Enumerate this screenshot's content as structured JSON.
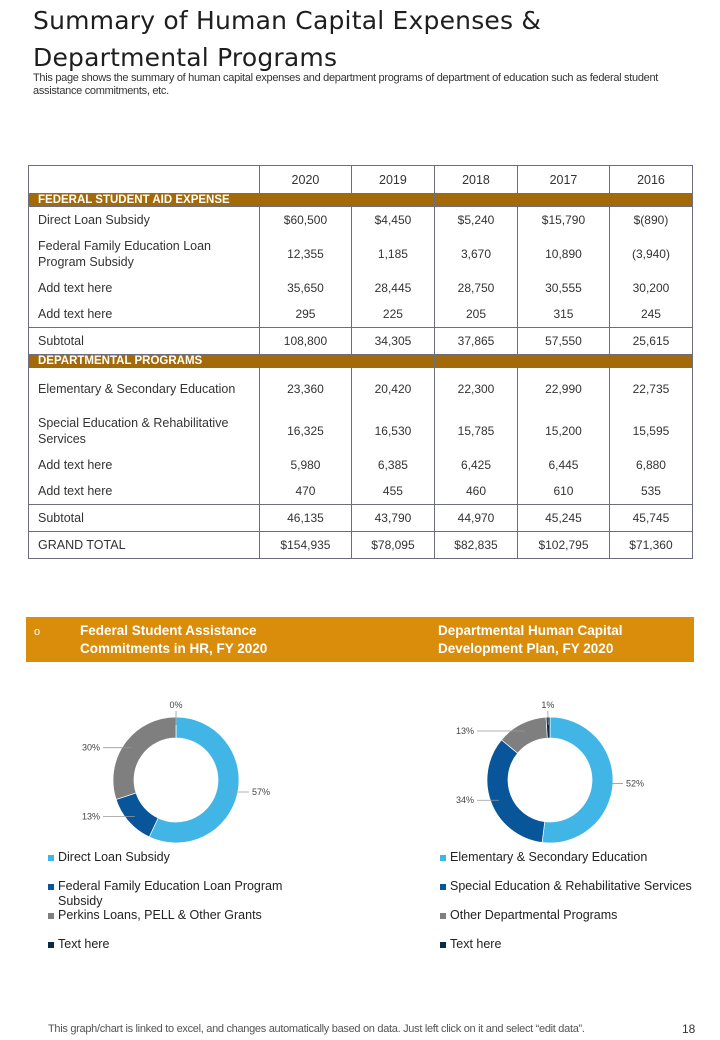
{
  "header": {
    "title_line1": "Summary of Human Capital Expenses &",
    "title_line2": "Departmental Programs",
    "subtitle": "This page shows the summary of human capital expenses and department programs of department of education such as federal student assistance commitments, etc."
  },
  "table": {
    "years": [
      "2020",
      "2019",
      "2018",
      "2017",
      "2016"
    ],
    "rows": [
      {
        "type": "sec",
        "label": "FEDERAL  STUDENT AID EXPENSE",
        "values": []
      },
      {
        "type": "r1",
        "label": "Direct Loan Subsidy",
        "values": [
          "$60,500",
          "$4,450",
          "$5,240",
          "$15,790",
          "$(890)"
        ]
      },
      {
        "type": "r2",
        "label": "Federal Family Education Loan Program Subsidy",
        "values": [
          "12,355",
          "1,185",
          "3,670",
          "10,890",
          "(3,940)"
        ]
      },
      {
        "type": "r1",
        "label": "Add text here",
        "values": [
          "35,650",
          "28,445",
          "28,750",
          "30,555",
          "30,200"
        ]
      },
      {
        "type": "r1",
        "label": "Add text here",
        "values": [
          "295",
          "225",
          "205",
          "315",
          "245"
        ]
      },
      {
        "type": "sub",
        "label": "Subtotal",
        "values": [
          "108,800",
          "34,305",
          "37,865",
          "57,550",
          "25,615"
        ]
      },
      {
        "type": "sec",
        "label": "DEPARTMENTAL  PROGRAMS",
        "values": []
      },
      {
        "type": "r2",
        "label": "Elementary & Secondary Education",
        "values": [
          "23,360",
          "20,420",
          "22,300",
          "22,990",
          "22,735"
        ]
      },
      {
        "type": "r2",
        "label": "Special Education & Rehabilitative Services",
        "values": [
          "16,325",
          "16,530",
          "15,785",
          "15,200",
          "15,595"
        ]
      },
      {
        "type": "r1",
        "label": "Add text here",
        "values": [
          "5,980",
          "6,385",
          "6,425",
          "6,445",
          "6,880"
        ]
      },
      {
        "type": "r1",
        "label": "Add text here",
        "values": [
          "470",
          "455",
          "460",
          "610",
          "535"
        ]
      },
      {
        "type": "sub",
        "label": "Subtotal",
        "values": [
          "46,135",
          "43,790",
          "44,970",
          "45,245",
          "45,745"
        ]
      },
      {
        "type": "sub",
        "label": "GRAND TOTAL",
        "values": [
          "$154,935",
          "$78,095",
          "$82,835",
          "$102,795",
          "$71,360"
        ]
      }
    ]
  },
  "band": {
    "left": "Federal Student Assistance Commitments  in HR, FY 2020",
    "right": "Departmental Human Capital Development Plan, FY 2020",
    "bullet": "o"
  },
  "colors": {
    "light_blue": "#41b6e6",
    "dark_blue": "#08559a",
    "gray": "#7f7f7f",
    "navy": "#0b2a4a",
    "section": "#a26a08",
    "band": "#d98d0b"
  },
  "chart_data": [
    {
      "type": "pie",
      "donut": true,
      "categories": [
        "Direct Loan Subsidy",
        "Federal Family Education Loan Program Subsidy",
        "Perkins Loans, PELL & Other Grants",
        "Text here"
      ],
      "values": [
        57,
        13,
        30,
        0
      ],
      "labels": [
        "57%",
        "13%",
        "30%",
        "0%"
      ],
      "legend": "bottom"
    },
    {
      "type": "pie",
      "donut": true,
      "categories": [
        "Elementary & Secondary Education",
        "Special Education & Rehabilitative Services",
        "Other Departmental Programs",
        "Text here"
      ],
      "values": [
        52,
        34,
        13,
        1
      ],
      "labels": [
        "52%",
        "34%",
        "13%",
        "1%"
      ],
      "legend": "bottom"
    }
  ],
  "footer": {
    "note": "This graph/chart is linked to excel,  and changes automatically based on data. Just left click on it and select “edit data”.",
    "page": "18"
  }
}
